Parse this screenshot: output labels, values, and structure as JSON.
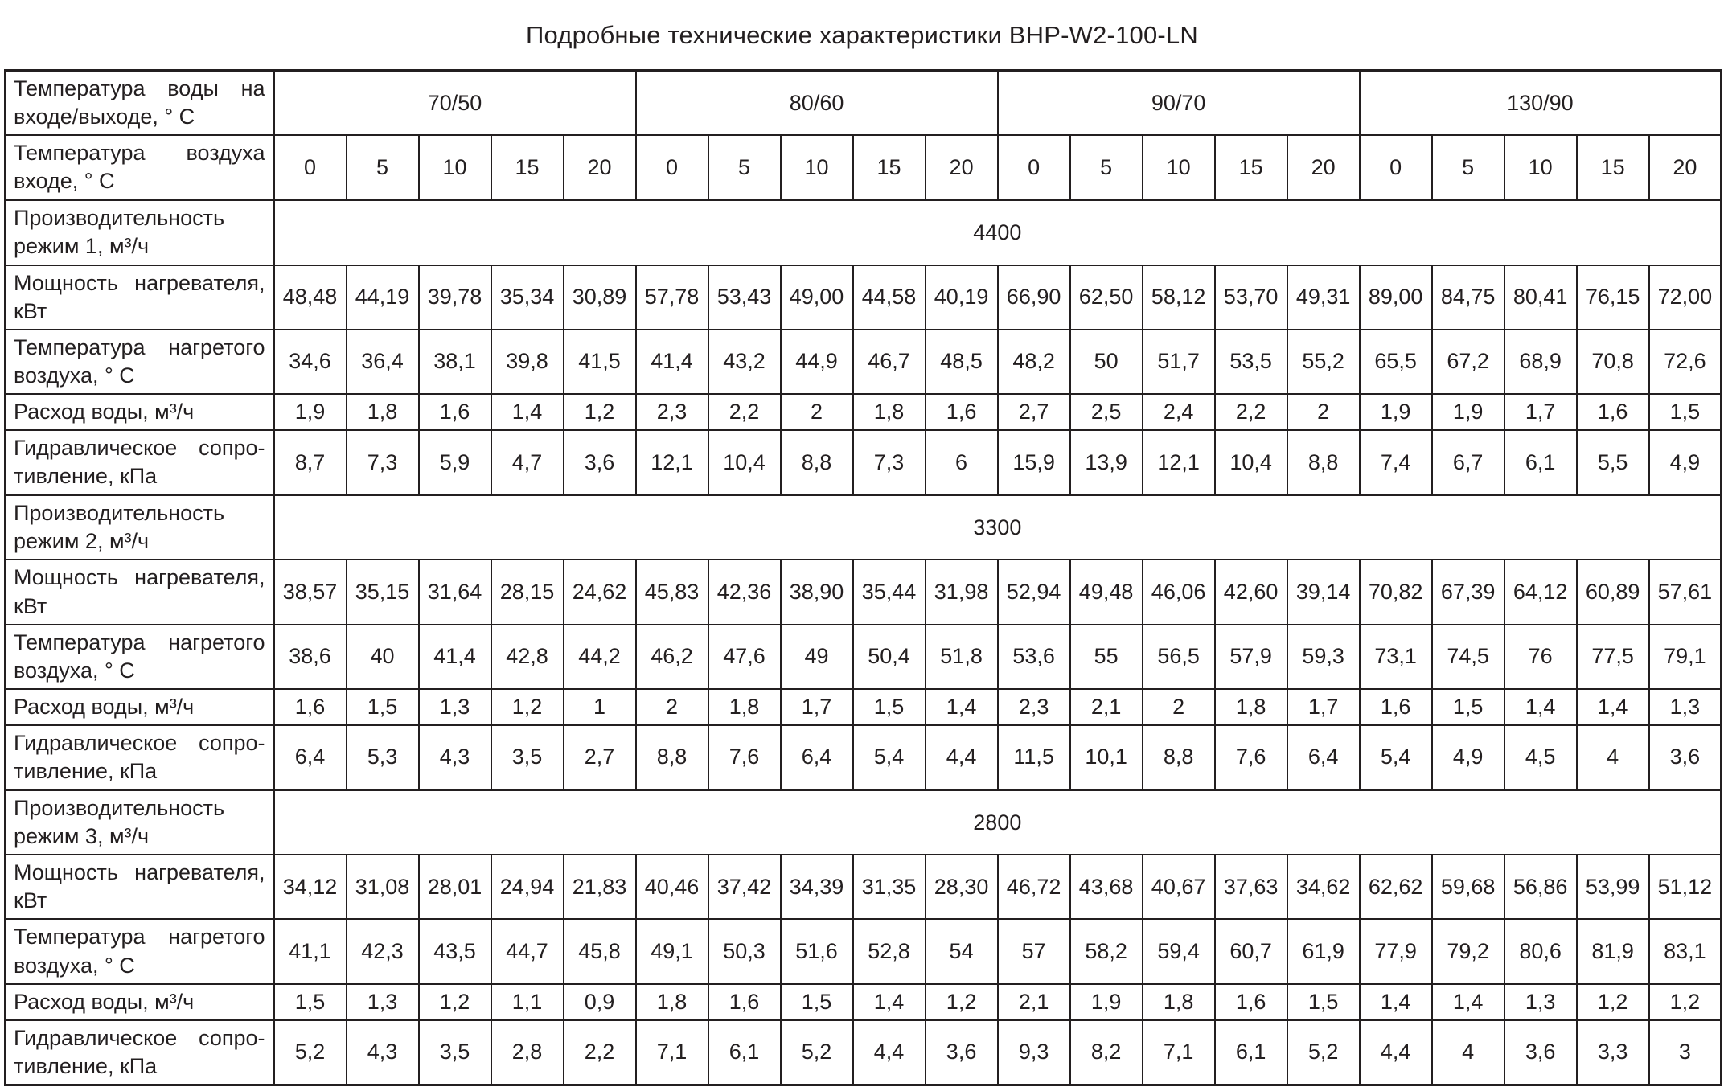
{
  "title": "Подробные технические характеристики BHP-W2-100-LN",
  "table": {
    "header": {
      "water_temp_label": "Температура воды на входе/выходе, ° С",
      "air_temp_label": "Температура воздуха входе, ° С",
      "groups": [
        "70/50",
        "80/60",
        "90/70",
        "130/90"
      ],
      "air_temps": [
        "0",
        "5",
        "10",
        "15",
        "20"
      ]
    },
    "sections": [
      {
        "capacity_label": "Производительность режим 1, м³/ч",
        "capacity_value": "4400",
        "rows": [
          {
            "label": "Мощность нагревателя, кВт",
            "values": [
              "48,48",
              "44,19",
              "39,78",
              "35,34",
              "30,89",
              "57,78",
              "53,43",
              "49,00",
              "44,58",
              "40,19",
              "66,90",
              "62,50",
              "58,12",
              "53,70",
              "49,31",
              "89,00",
              "84,75",
              "80,41",
              "76,15",
              "72,00"
            ]
          },
          {
            "label": "Температура нагретого воздуха, ° С",
            "values": [
              "34,6",
              "36,4",
              "38,1",
              "39,8",
              "41,5",
              "41,4",
              "43,2",
              "44,9",
              "46,7",
              "48,5",
              "48,2",
              "50",
              "51,7",
              "53,5",
              "55,2",
              "65,5",
              "67,2",
              "68,9",
              "70,8",
              "72,6"
            ]
          },
          {
            "label": "Расход воды, м³/ч",
            "values": [
              "1,9",
              "1,8",
              "1,6",
              "1,4",
              "1,2",
              "2,3",
              "2,2",
              "2",
              "1,8",
              "1,6",
              "2,7",
              "2,5",
              "2,4",
              "2,2",
              "2",
              "1,9",
              "1,9",
              "1,7",
              "1,6",
              "1,5"
            ]
          },
          {
            "label": "Гидравлическое сопро-тивление, кПа",
            "values": [
              "8,7",
              "7,3",
              "5,9",
              "4,7",
              "3,6",
              "12,1",
              "10,4",
              "8,8",
              "7,3",
              "6",
              "15,9",
              "13,9",
              "12,1",
              "10,4",
              "8,8",
              "7,4",
              "6,7",
              "6,1",
              "5,5",
              "4,9"
            ]
          }
        ]
      },
      {
        "capacity_label": "Производительность режим 2, м³/ч",
        "capacity_value": "3300",
        "rows": [
          {
            "label": "Мощность нагревателя, кВт",
            "values": [
              "38,57",
              "35,15",
              "31,64",
              "28,15",
              "24,62",
              "45,83",
              "42,36",
              "38,90",
              "35,44",
              "31,98",
              "52,94",
              "49,48",
              "46,06",
              "42,60",
              "39,14",
              "70,82",
              "67,39",
              "64,12",
              "60,89",
              "57,61"
            ]
          },
          {
            "label": "Температура нагретого воздуха, ° С",
            "values": [
              "38,6",
              "40",
              "41,4",
              "42,8",
              "44,2",
              "46,2",
              "47,6",
              "49",
              "50,4",
              "51,8",
              "53,6",
              "55",
              "56,5",
              "57,9",
              "59,3",
              "73,1",
              "74,5",
              "76",
              "77,5",
              "79,1"
            ]
          },
          {
            "label": "Расход воды, м³/ч",
            "values": [
              "1,6",
              "1,5",
              "1,3",
              "1,2",
              "1",
              "2",
              "1,8",
              "1,7",
              "1,5",
              "1,4",
              "2,3",
              "2,1",
              "2",
              "1,8",
              "1,7",
              "1,6",
              "1,5",
              "1,4",
              "1,4",
              "1,3"
            ]
          },
          {
            "label": "Гидравлическое сопро-тивление, кПа",
            "values": [
              "6,4",
              "5,3",
              "4,3",
              "3,5",
              "2,7",
              "8,8",
              "7,6",
              "6,4",
              "5,4",
              "4,4",
              "11,5",
              "10,1",
              "8,8",
              "7,6",
              "6,4",
              "5,4",
              "4,9",
              "4,5",
              "4",
              "3,6"
            ]
          }
        ]
      },
      {
        "capacity_label": "Производительность режим 3, м³/ч",
        "capacity_value": "2800",
        "rows": [
          {
            "label": "Мощность нагревателя, кВт",
            "values": [
              "34,12",
              "31,08",
              "28,01",
              "24,94",
              "21,83",
              "40,46",
              "37,42",
              "34,39",
              "31,35",
              "28,30",
              "46,72",
              "43,68",
              "40,67",
              "37,63",
              "34,62",
              "62,62",
              "59,68",
              "56,86",
              "53,99",
              "51,12"
            ]
          },
          {
            "label": "Температура нагретого воздуха, ° С",
            "values": [
              "41,1",
              "42,3",
              "43,5",
              "44,7",
              "45,8",
              "49,1",
              "50,3",
              "51,6",
              "52,8",
              "54",
              "57",
              "58,2",
              "59,4",
              "60,7",
              "61,9",
              "77,9",
              "79,2",
              "80,6",
              "81,9",
              "83,1"
            ]
          },
          {
            "label": "Расход воды, м³/ч",
            "values": [
              "1,5",
              "1,3",
              "1,2",
              "1,1",
              "0,9",
              "1,8",
              "1,6",
              "1,5",
              "1,4",
              "1,2",
              "2,1",
              "1,9",
              "1,8",
              "1,6",
              "1,5",
              "1,4",
              "1,4",
              "1,3",
              "1,2",
              "1,2"
            ]
          },
          {
            "label": "Гидравлическое сопро-тивление, кПа",
            "values": [
              "5,2",
              "4,3",
              "3,5",
              "2,8",
              "2,2",
              "7,1",
              "6,1",
              "5,2",
              "4,4",
              "3,6",
              "9,3",
              "8,2",
              "7,1",
              "6,1",
              "5,2",
              "4,4",
              "4",
              "3,6",
              "3,3",
              "3"
            ]
          }
        ]
      }
    ]
  }
}
